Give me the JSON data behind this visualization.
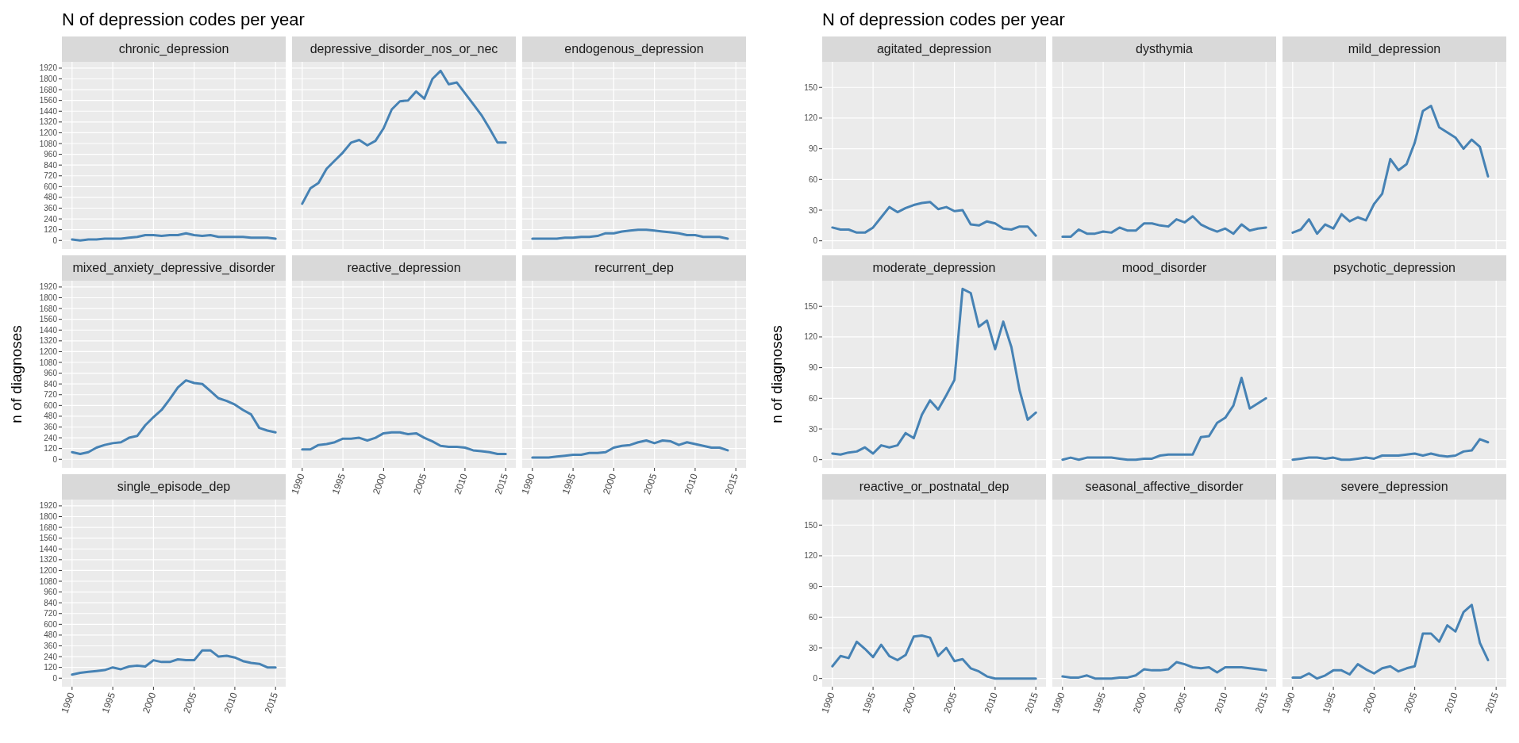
{
  "chart_data": [
    {
      "type": "line",
      "title": "chronic_depression",
      "annotations": [
        "N of depression codes per year"
      ],
      "x": [
        1990,
        1991,
        1992,
        1993,
        1994,
        1995,
        1996,
        1997,
        1998,
        1999,
        2000,
        2001,
        2002,
        2003,
        2004,
        2005,
        2006,
        2007,
        2008,
        2009,
        2010,
        2011,
        2012,
        2013,
        2014,
        2015
      ],
      "values": [
        10,
        0,
        10,
        10,
        20,
        20,
        20,
        30,
        40,
        60,
        60,
        50,
        60,
        60,
        80,
        60,
        50,
        60,
        40,
        40,
        40,
        40,
        30,
        30,
        30,
        20
      ],
      "color": "#4682b4",
      "xlim": [
        1988.75,
        2016.25
      ],
      "xticks": [
        1990,
        1995,
        2000,
        2005,
        2010,
        2015
      ],
      "ylim": [
        -95,
        1990
      ],
      "yticks": [
        0,
        120,
        240,
        360,
        480,
        600,
        720,
        840,
        960,
        1080,
        1200,
        1320,
        1440,
        1560,
        1680,
        1800,
        1920
      ],
      "grid": true,
      "tick_labels": "y"
    },
    {
      "type": "line",
      "title": "depressive_disorder_nos_or_nec",
      "x": [
        1990,
        1991,
        1992,
        1993,
        1994,
        1995,
        1996,
        1997,
        1998,
        1999,
        2000,
        2001,
        2002,
        2003,
        2004,
        2005,
        2006,
        2007,
        2008,
        2009,
        2010,
        2011,
        2012,
        2013,
        2014,
        2015
      ],
      "values": [
        410,
        580,
        640,
        800,
        890,
        980,
        1090,
        1120,
        1060,
        1110,
        1250,
        1460,
        1550,
        1560,
        1660,
        1580,
        1800,
        1890,
        1740,
        1760,
        1640,
        1520,
        1400,
        1250,
        1090,
        1090
      ],
      "color": "#4682b4",
      "xlim": [
        1988.75,
        2016.25
      ],
      "xticks": [
        1990,
        1995,
        2000,
        2005,
        2010,
        2015
      ],
      "ylim": [
        -95,
        1990
      ],
      "yticks": [
        0,
        120,
        240,
        360,
        480,
        600,
        720,
        840,
        960,
        1080,
        1200,
        1320,
        1440,
        1560,
        1680,
        1800,
        1920
      ],
      "grid": true,
      "tick_labels": false
    },
    {
      "type": "line",
      "title": "endogenous_depression",
      "x": [
        1990,
        1991,
        1992,
        1993,
        1994,
        1995,
        1996,
        1997,
        1998,
        1999,
        2000,
        2001,
        2002,
        2003,
        2004,
        2005,
        2006,
        2007,
        2008,
        2009,
        2010,
        2011,
        2012,
        2013,
        2014
      ],
      "values": [
        20,
        20,
        20,
        20,
        30,
        30,
        40,
        40,
        50,
        80,
        80,
        100,
        110,
        120,
        120,
        110,
        100,
        90,
        80,
        60,
        60,
        40,
        40,
        40,
        20
      ],
      "color": "#4682b4",
      "xlim": [
        1988.75,
        2016.25
      ],
      "xticks": [
        1990,
        1995,
        2000,
        2005,
        2010,
        2015
      ],
      "ylim": [
        -95,
        1990
      ],
      "yticks": [
        0,
        120,
        240,
        360,
        480,
        600,
        720,
        840,
        960,
        1080,
        1200,
        1320,
        1440,
        1560,
        1680,
        1800,
        1920
      ],
      "grid": true,
      "tick_labels": false
    },
    {
      "type": "line",
      "title": "mixed_anxiety_depressive_disorder",
      "ylabel": "n of diagnoses",
      "x": [
        1990,
        1991,
        1992,
        1993,
        1994,
        1995,
        1996,
        1997,
        1998,
        1999,
        2000,
        2001,
        2002,
        2003,
        2004,
        2005,
        2006,
        2007,
        2008,
        2009,
        2010,
        2011,
        2012,
        2013,
        2014,
        2015
      ],
      "values": [
        80,
        60,
        80,
        130,
        160,
        180,
        190,
        240,
        260,
        380,
        470,
        550,
        670,
        800,
        880,
        850,
        840,
        760,
        680,
        650,
        610,
        550,
        500,
        350,
        320,
        300
      ],
      "color": "#4682b4",
      "xlim": [
        1988.75,
        2016.25
      ],
      "xticks": [
        1990,
        1995,
        2000,
        2005,
        2010,
        2015
      ],
      "ylim": [
        -95,
        1990
      ],
      "yticks": [
        0,
        120,
        240,
        360,
        480,
        600,
        720,
        840,
        960,
        1080,
        1200,
        1320,
        1440,
        1560,
        1680,
        1800,
        1920
      ],
      "grid": true,
      "tick_labels": "y"
    },
    {
      "type": "line",
      "title": "reactive_depression",
      "x": [
        1990,
        1991,
        1992,
        1993,
        1994,
        1995,
        1996,
        1997,
        1998,
        1999,
        2000,
        2001,
        2002,
        2003,
        2004,
        2005,
        2006,
        2007,
        2008,
        2009,
        2010,
        2011,
        2012,
        2013,
        2014,
        2015
      ],
      "values": [
        110,
        110,
        160,
        170,
        190,
        230,
        230,
        240,
        210,
        240,
        290,
        300,
        300,
        280,
        290,
        240,
        200,
        150,
        140,
        140,
        130,
        100,
        90,
        80,
        60,
        60
      ],
      "color": "#4682b4",
      "xlim": [
        1988.75,
        2016.25
      ],
      "xticks": [
        1990,
        1995,
        2000,
        2005,
        2010,
        2015
      ],
      "ylim": [
        -95,
        1990
      ],
      "yticks": [
        0,
        120,
        240,
        360,
        480,
        600,
        720,
        840,
        960,
        1080,
        1200,
        1320,
        1440,
        1560,
        1680,
        1800,
        1920
      ],
      "grid": true,
      "tick_labels": "x"
    },
    {
      "type": "line",
      "title": "recurrent_dep",
      "x": [
        1990,
        1991,
        1992,
        1993,
        1994,
        1995,
        1996,
        1997,
        1998,
        1999,
        2000,
        2001,
        2002,
        2003,
        2004,
        2005,
        2006,
        2007,
        2008,
        2009,
        2010,
        2011,
        2012,
        2013,
        2014
      ],
      "values": [
        20,
        20,
        20,
        30,
        40,
        50,
        50,
        70,
        70,
        80,
        130,
        150,
        160,
        190,
        210,
        180,
        210,
        200,
        160,
        190,
        170,
        150,
        130,
        130,
        100
      ],
      "color": "#4682b4",
      "xlim": [
        1988.75,
        2016.25
      ],
      "xticks": [
        1990,
        1995,
        2000,
        2005,
        2010,
        2015
      ],
      "ylim": [
        -95,
        1990
      ],
      "yticks": [
        0,
        120,
        240,
        360,
        480,
        600,
        720,
        840,
        960,
        1080,
        1200,
        1320,
        1440,
        1560,
        1680,
        1800,
        1920
      ],
      "grid": true,
      "tick_labels": "x"
    },
    {
      "type": "line",
      "title": "single_episode_dep",
      "x": [
        1990,
        1991,
        1992,
        1993,
        1994,
        1995,
        1996,
        1997,
        1998,
        1999,
        2000,
        2001,
        2002,
        2003,
        2004,
        2005,
        2006,
        2007,
        2008,
        2009,
        2010,
        2011,
        2012,
        2013,
        2014,
        2015
      ],
      "values": [
        40,
        60,
        70,
        80,
        90,
        120,
        100,
        130,
        140,
        130,
        200,
        180,
        180,
        210,
        200,
        200,
        310,
        310,
        240,
        250,
        230,
        190,
        170,
        160,
        120,
        120
      ],
      "color": "#4682b4",
      "xlim": [
        1988.75,
        2016.25
      ],
      "xticks": [
        1990,
        1995,
        2000,
        2005,
        2010,
        2015
      ],
      "ylim": [
        -95,
        1990
      ],
      "yticks": [
        0,
        120,
        240,
        360,
        480,
        600,
        720,
        840,
        960,
        1080,
        1200,
        1320,
        1440,
        1560,
        1680,
        1800,
        1920
      ],
      "grid": true
    },
    {
      "type": "line",
      "title": "agitated_depression",
      "annotations": [
        "N of depression codes per year"
      ],
      "x": [
        1990,
        1991,
        1992,
        1993,
        1994,
        1995,
        1996,
        1997,
        1998,
        1999,
        2000,
        2001,
        2002,
        2003,
        2004,
        2005,
        2006,
        2007,
        2008,
        2009,
        2010,
        2011,
        2012,
        2013,
        2014,
        2015
      ],
      "values": [
        13,
        11,
        11,
        8,
        8,
        13,
        23,
        33,
        28,
        32,
        35,
        37,
        38,
        31,
        33,
        29,
        30,
        16,
        15,
        19,
        17,
        12,
        11,
        14,
        14,
        5
      ],
      "color": "#4682b4",
      "xlim": [
        1988.75,
        2016.25
      ],
      "xticks": [
        1990,
        1995,
        2000,
        2005,
        2010,
        2015
      ],
      "ylim": [
        -8,
        175
      ],
      "yticks": [
        0,
        30,
        60,
        90,
        120,
        150
      ],
      "grid": true,
      "tick_labels": "y"
    },
    {
      "type": "line",
      "title": "dysthymia",
      "x": [
        1990,
        1991,
        1992,
        1993,
        1994,
        1995,
        1996,
        1997,
        1998,
        1999,
        2000,
        2001,
        2002,
        2003,
        2004,
        2005,
        2006,
        2007,
        2008,
        2009,
        2010,
        2011,
        2012,
        2013,
        2014,
        2015
      ],
      "values": [
        4,
        4,
        11,
        7,
        7,
        9,
        8,
        13,
        10,
        10,
        17,
        17,
        15,
        14,
        21,
        18,
        24,
        16,
        12,
        9,
        12,
        7,
        16,
        10,
        12,
        13
      ],
      "color": "#4682b4",
      "xlim": [
        1988.75,
        2016.25
      ],
      "xticks": [
        1990,
        1995,
        2000,
        2005,
        2010,
        2015
      ],
      "ylim": [
        -8,
        175
      ],
      "yticks": [
        0,
        30,
        60,
        90,
        120,
        150
      ],
      "grid": true,
      "tick_labels": false
    },
    {
      "type": "line",
      "title": "mild_depression",
      "x": [
        1990,
        1991,
        1992,
        1993,
        1994,
        1995,
        1996,
        1997,
        1998,
        1999,
        2000,
        2001,
        2002,
        2003,
        2004,
        2005,
        2006,
        2007,
        2008,
        2009,
        2010,
        2011,
        2012,
        2013,
        2014
      ],
      "values": [
        8,
        11,
        21,
        7,
        16,
        12,
        26,
        19,
        23,
        20,
        36,
        46,
        80,
        69,
        75,
        96,
        127,
        132,
        111,
        106,
        101,
        90,
        99,
        92,
        63
      ],
      "color": "#4682b4",
      "xlim": [
        1988.75,
        2016.25
      ],
      "xticks": [
        1990,
        1995,
        2000,
        2005,
        2010,
        2015
      ],
      "ylim": [
        -8,
        175
      ],
      "yticks": [
        0,
        30,
        60,
        90,
        120,
        150
      ],
      "grid": true,
      "tick_labels": false
    },
    {
      "type": "line",
      "title": "moderate_depression",
      "ylabel": "n of diagnoses",
      "x": [
        1990,
        1991,
        1992,
        1993,
        1994,
        1995,
        1996,
        1997,
        1998,
        1999,
        2000,
        2001,
        2002,
        2003,
        2004,
        2005,
        2006,
        2007,
        2008,
        2009,
        2010,
        2011,
        2012,
        2013,
        2014,
        2015
      ],
      "values": [
        6,
        5,
        7,
        8,
        12,
        6,
        14,
        12,
        14,
        26,
        21,
        44,
        58,
        49,
        63,
        78,
        167,
        163,
        130,
        136,
        108,
        135,
        110,
        68,
        39,
        46
      ],
      "color": "#4682b4",
      "xlim": [
        1988.75,
        2016.25
      ],
      "xticks": [
        1990,
        1995,
        2000,
        2005,
        2010,
        2015
      ],
      "ylim": [
        -8,
        175
      ],
      "yticks": [
        0,
        30,
        60,
        90,
        120,
        150
      ],
      "grid": true,
      "tick_labels": "y"
    },
    {
      "type": "line",
      "title": "mood_disorder",
      "x": [
        1990,
        1991,
        1992,
        1993,
        1994,
        1995,
        1996,
        1997,
        1998,
        1999,
        2000,
        2001,
        2002,
        2003,
        2004,
        2005,
        2006,
        2007,
        2008,
        2009,
        2010,
        2011,
        2012,
        2013,
        2014,
        2015
      ],
      "values": [
        0,
        2,
        0,
        2,
        2,
        2,
        2,
        1,
        0,
        0,
        1,
        1,
        4,
        5,
        5,
        5,
        5,
        22,
        23,
        36,
        41,
        53,
        80,
        50,
        55,
        60
      ],
      "color": "#4682b4",
      "xlim": [
        1988.75,
        2016.25
      ],
      "xticks": [
        1990,
        1995,
        2000,
        2005,
        2010,
        2015
      ],
      "ylim": [
        -8,
        175
      ],
      "yticks": [
        0,
        30,
        60,
        90,
        120,
        150
      ],
      "grid": true,
      "tick_labels": false
    },
    {
      "type": "line",
      "title": "psychotic_depression",
      "x": [
        1990,
        1991,
        1992,
        1993,
        1994,
        1995,
        1996,
        1997,
        1998,
        1999,
        2000,
        2001,
        2002,
        2003,
        2004,
        2005,
        2006,
        2007,
        2008,
        2009,
        2010,
        2011,
        2012,
        2013,
        2014
      ],
      "values": [
        0,
        1,
        2,
        2,
        1,
        2,
        0,
        0,
        1,
        2,
        1,
        4,
        4,
        4,
        5,
        6,
        4,
        6,
        4,
        3,
        4,
        8,
        9,
        20,
        17
      ],
      "color": "#4682b4",
      "xlim": [
        1988.75,
        2016.25
      ],
      "xticks": [
        1990,
        1995,
        2000,
        2005,
        2010,
        2015
      ],
      "ylim": [
        -8,
        175
      ],
      "yticks": [
        0,
        30,
        60,
        90,
        120,
        150
      ],
      "grid": true,
      "tick_labels": false
    },
    {
      "type": "line",
      "title": "reactive_or_postnatal_dep",
      "x": [
        1990,
        1991,
        1992,
        1993,
        1994,
        1995,
        1996,
        1997,
        1998,
        1999,
        2000,
        2001,
        2002,
        2003,
        2004,
        2005,
        2006,
        2007,
        2008,
        2009,
        2010,
        2011,
        2012,
        2013,
        2014,
        2015
      ],
      "values": [
        12,
        22,
        20,
        36,
        29,
        21,
        33,
        22,
        18,
        23,
        41,
        42,
        40,
        22,
        30,
        17,
        19,
        10,
        7,
        2,
        0,
        0,
        0,
        0,
        0,
        0
      ],
      "color": "#4682b4",
      "xlim": [
        1988.75,
        2016.25
      ],
      "xticks": [
        1990,
        1995,
        2000,
        2005,
        2010,
        2015
      ],
      "ylim": [
        -8,
        175
      ],
      "yticks": [
        0,
        30,
        60,
        90,
        120,
        150
      ],
      "grid": true
    },
    {
      "type": "line",
      "title": "seasonal_affective_disorder",
      "x": [
        1990,
        1991,
        1992,
        1993,
        1994,
        1995,
        1996,
        1997,
        1998,
        1999,
        2000,
        2001,
        2002,
        2003,
        2004,
        2005,
        2006,
        2007,
        2008,
        2009,
        2010,
        2011,
        2012,
        2013,
        2014,
        2015
      ],
      "values": [
        2,
        1,
        1,
        3,
        0,
        0,
        0,
        1,
        1,
        3,
        9,
        8,
        8,
        9,
        16,
        14,
        11,
        10,
        11,
        6,
        11,
        11,
        11,
        10,
        9,
        8
      ],
      "color": "#4682b4",
      "xlim": [
        1988.75,
        2016.25
      ],
      "xticks": [
        1990,
        1995,
        2000,
        2005,
        2010,
        2015
      ],
      "ylim": [
        -8,
        175
      ],
      "yticks": [
        0,
        30,
        60,
        90,
        120,
        150
      ],
      "grid": true,
      "tick_labels": "x"
    },
    {
      "type": "line",
      "title": "severe_depression",
      "x": [
        1990,
        1991,
        1992,
        1993,
        1994,
        1995,
        1996,
        1997,
        1998,
        1999,
        2000,
        2001,
        2002,
        2003,
        2004,
        2005,
        2006,
        2007,
        2008,
        2009,
        2010,
        2011,
        2012,
        2013,
        2014
      ],
      "values": [
        1,
        1,
        5,
        0,
        3,
        8,
        8,
        4,
        14,
        9,
        5,
        10,
        12,
        7,
        10,
        12,
        44,
        44,
        36,
        52,
        46,
        65,
        72,
        35,
        18
      ],
      "color": "#4682b4",
      "xlim": [
        1988.75,
        2016.25
      ],
      "xticks": [
        1990,
        1995,
        2000,
        2005,
        2010,
        2015
      ],
      "ylim": [
        -8,
        175
      ],
      "yticks": [
        0,
        30,
        60,
        90,
        120,
        150
      ],
      "grid": true,
      "tick_labels": "x"
    }
  ]
}
